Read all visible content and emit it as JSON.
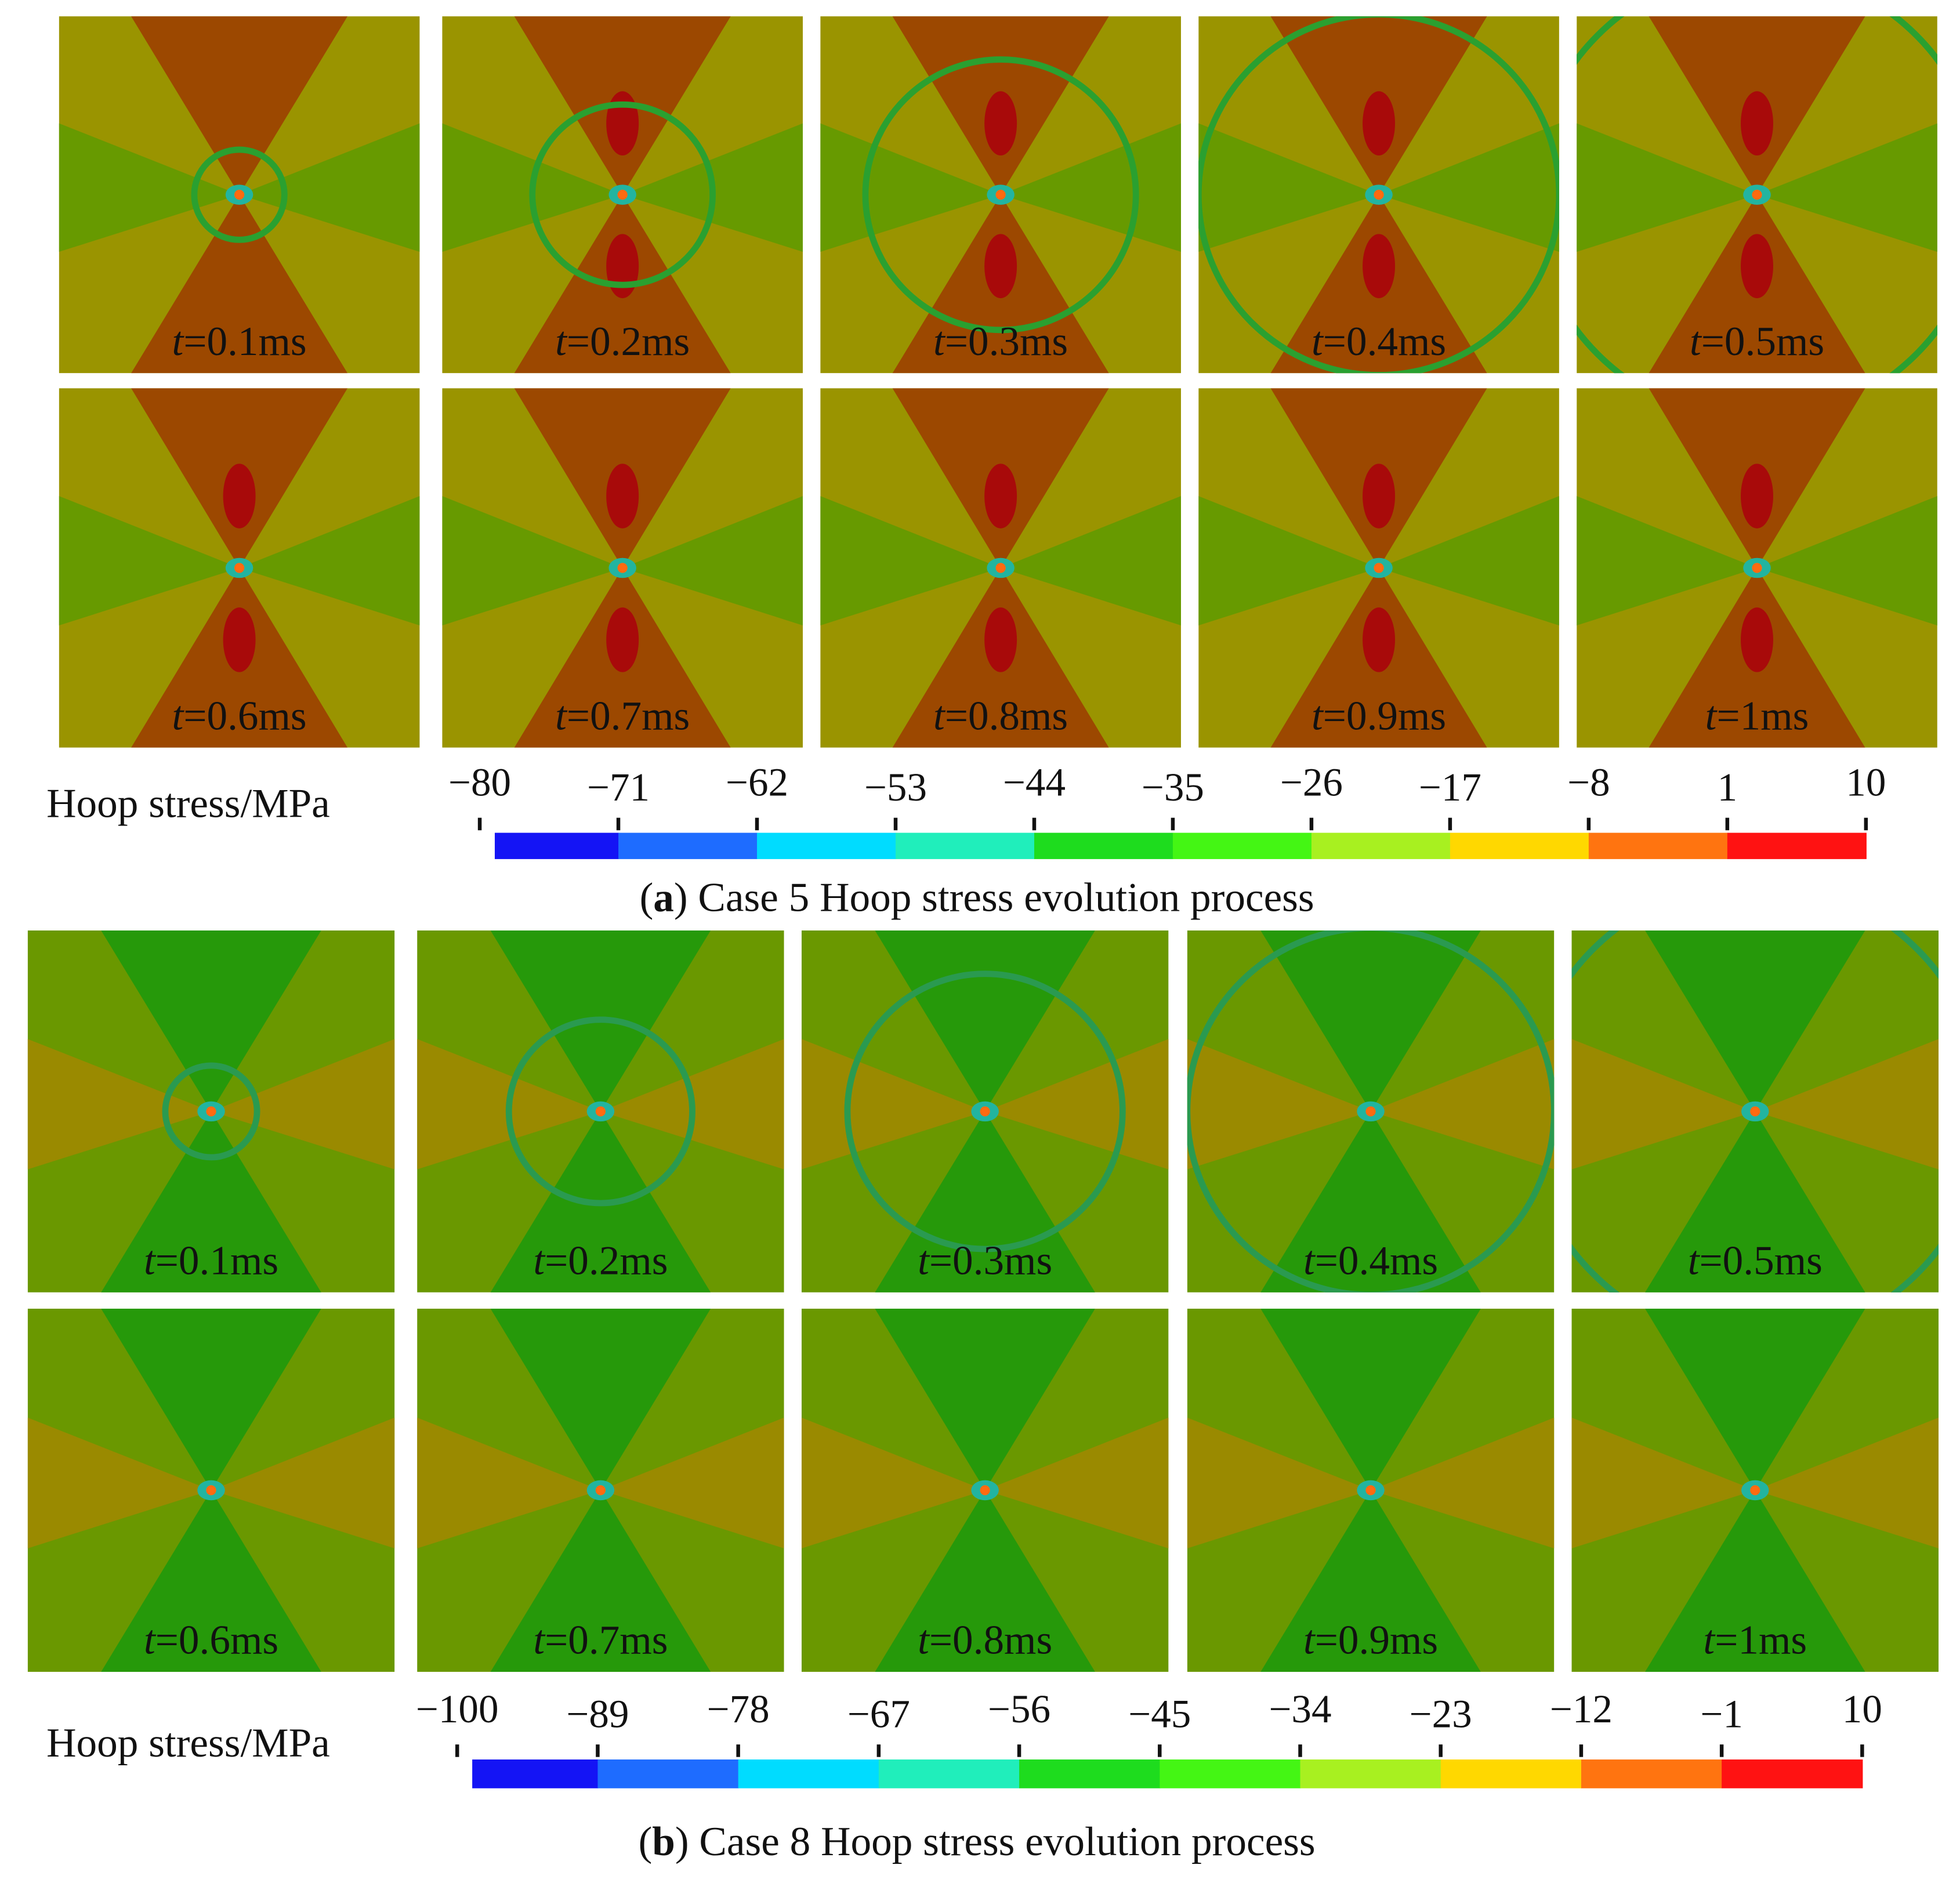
{
  "figures": [
    {
      "panels": [
        "t=0.1ms",
        "t=0.2ms",
        "t=0.3ms",
        "t=0.4ms",
        "t=0.5ms",
        "t=0.6ms",
        "t=0.7ms",
        "t=0.8ms",
        "t=0.9ms",
        "t=1ms"
      ],
      "colorbar": {
        "title": "Hoop stress/MPa",
        "ticks": [
          {
            "value": -80,
            "label": "−80"
          },
          {
            "value": -71,
            "label": "−71"
          },
          {
            "value": -62,
            "label": "−62"
          },
          {
            "value": -53,
            "label": "−53"
          },
          {
            "value": -44,
            "label": "−44"
          },
          {
            "value": -35,
            "label": "−35"
          },
          {
            "value": -26,
            "label": "−26"
          },
          {
            "value": -17,
            "label": "−17"
          },
          {
            "value": -8,
            "label": "−8"
          },
          1,
          10
        ]
      },
      "caption": "(a) Case 5 Hoop stress evolution process"
    },
    {
      "panels": [
        "t=0.1ms",
        "t=0.2ms",
        "t=0.3ms",
        "t=0.4ms",
        "t=0.5ms",
        "t=0.6ms",
        "t=0.7ms",
        "t=0.8ms",
        "t=0.9ms",
        "t=1ms"
      ],
      "colorbar": {
        "title": "Hoop stress/MPa",
        "ticks": [
          {
            "value": -100,
            "label": "−100"
          },
          {
            "value": -89,
            "label": "−89"
          },
          {
            "value": -78,
            "label": "−78"
          },
          {
            "value": -67,
            "label": "−67"
          },
          {
            "value": -56,
            "label": "−56"
          },
          {
            "value": -45,
            "label": "−45"
          },
          {
            "value": -34,
            "label": "−34"
          },
          {
            "value": -23,
            "label": "−23"
          },
          {
            "value": -12,
            "label": "−12"
          },
          {
            "value": -1,
            "label": "−1"
          },
          10
        ]
      },
      "caption": "(b) Case 8 Hoop stress evolution process"
    }
  ]
}
